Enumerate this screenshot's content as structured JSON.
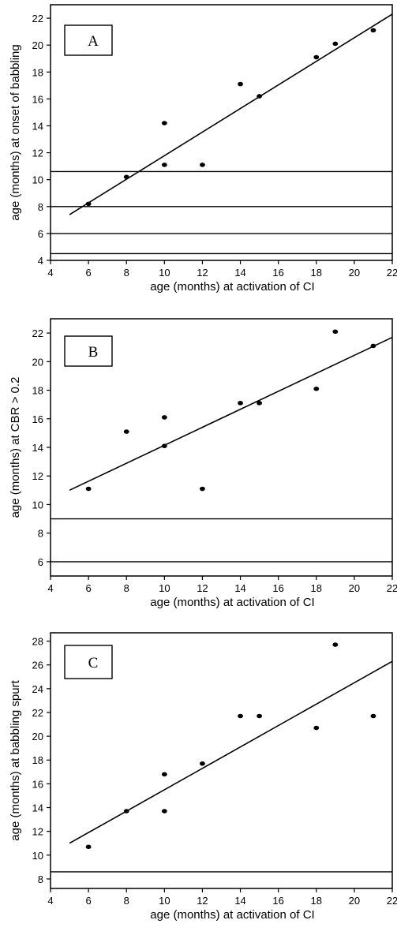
{
  "chart_data": [
    {
      "type": "scatter",
      "panel_label": "A",
      "xlabel": "age (months) at activation of CI",
      "ylabel": "age (months) at onset of babbling",
      "xlim": [
        4,
        22
      ],
      "ylim": [
        4,
        23
      ],
      "xticks": [
        4,
        6,
        8,
        10,
        12,
        14,
        16,
        18,
        20,
        22
      ],
      "yticks": [
        4,
        6,
        8,
        10,
        12,
        14,
        16,
        18,
        20,
        22
      ],
      "grid": false,
      "points": [
        {
          "x": 6,
          "y": 8.2
        },
        {
          "x": 8,
          "y": 10.2
        },
        {
          "x": 10,
          "y": 14.2
        },
        {
          "x": 10,
          "y": 11.1
        },
        {
          "x": 12,
          "y": 11.1
        },
        {
          "x": 14,
          "y": 17.1
        },
        {
          "x": 15,
          "y": 16.2
        },
        {
          "x": 18,
          "y": 19.1
        },
        {
          "x": 19,
          "y": 20.1
        },
        {
          "x": 21,
          "y": 21.1
        }
      ],
      "fit_line": {
        "x": [
          5,
          22
        ],
        "y": [
          7.4,
          22.3
        ]
      },
      "reference_lines_y": [
        10.6,
        8,
        6,
        4.5
      ]
    },
    {
      "type": "scatter",
      "panel_label": "B",
      "xlabel": "age (months) at activation of CI",
      "ylabel": "age (months) at CBR > 0.2",
      "xlim": [
        4,
        22
      ],
      "ylim": [
        5,
        23
      ],
      "xticks": [
        4,
        6,
        8,
        10,
        12,
        14,
        16,
        18,
        20,
        22
      ],
      "yticks": [
        6,
        8,
        10,
        12,
        14,
        16,
        18,
        20,
        22
      ],
      "grid": false,
      "points": [
        {
          "x": 6,
          "y": 11.1
        },
        {
          "x": 8,
          "y": 15.1
        },
        {
          "x": 10,
          "y": 16.1
        },
        {
          "x": 10,
          "y": 14.1
        },
        {
          "x": 12,
          "y": 11.1
        },
        {
          "x": 14,
          "y": 17.1
        },
        {
          "x": 15,
          "y": 17.1
        },
        {
          "x": 18,
          "y": 18.1
        },
        {
          "x": 19,
          "y": 22.1
        },
        {
          "x": 21,
          "y": 21.1
        }
      ],
      "fit_line": {
        "x": [
          5,
          22
        ],
        "y": [
          11.0,
          21.7
        ]
      },
      "reference_lines_y": [
        9,
        6
      ]
    },
    {
      "type": "scatter",
      "panel_label": "C",
      "xlabel": "age (months) at activation of CI",
      "ylabel": "age (months) at babbling spurt",
      "xlim": [
        4,
        22
      ],
      "ylim": [
        7.2,
        28.7
      ],
      "xticks": [
        4,
        6,
        8,
        10,
        12,
        14,
        16,
        18,
        20,
        22
      ],
      "yticks": [
        8,
        10,
        12,
        14,
        16,
        18,
        20,
        22,
        24,
        26,
        28
      ],
      "grid": false,
      "points": [
        {
          "x": 6,
          "y": 10.7
        },
        {
          "x": 8,
          "y": 13.7
        },
        {
          "x": 10,
          "y": 16.8
        },
        {
          "x": 10,
          "y": 13.7
        },
        {
          "x": 12,
          "y": 17.7
        },
        {
          "x": 14,
          "y": 21.7
        },
        {
          "x": 15,
          "y": 21.7
        },
        {
          "x": 18,
          "y": 20.7
        },
        {
          "x": 19,
          "y": 27.7
        },
        {
          "x": 21,
          "y": 21.7
        }
      ],
      "fit_line": {
        "x": [
          5,
          22
        ],
        "y": [
          11.0,
          26.3
        ]
      },
      "reference_lines_y": [
        8.6
      ]
    }
  ]
}
